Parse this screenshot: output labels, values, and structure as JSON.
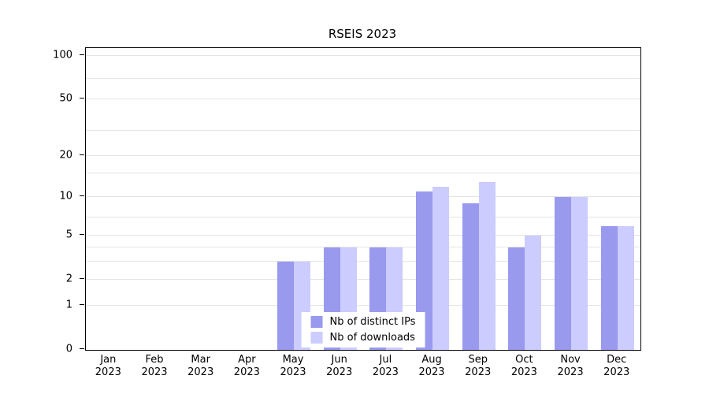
{
  "chart_data": {
    "type": "bar",
    "title": "RSEIS 2023",
    "categories": [
      "Jan 2023",
      "Feb 2023",
      "Mar 2023",
      "Apr 2023",
      "May 2023",
      "Jun 2023",
      "Jul 2023",
      "Aug 2023",
      "Sep 2023",
      "Oct 2023",
      "Nov 2023",
      "Dec 2023"
    ],
    "series": [
      {
        "name": "Nb of distinct IPs",
        "color": "#9999ee",
        "values": [
          0,
          0,
          0,
          0,
          3,
          4,
          4,
          11,
          9,
          4,
          10,
          6
        ]
      },
      {
        "name": "Nb of downloads",
        "color": "#ccccff",
        "values": [
          0,
          0,
          0,
          0,
          3,
          4,
          4,
          12,
          13,
          5,
          10,
          6
        ]
      }
    ],
    "y_ticks": [
      0,
      1,
      2,
      5,
      10,
      20,
      50,
      100
    ],
    "grid_values": [
      1,
      2,
      3,
      4,
      5,
      7,
      10,
      15,
      20,
      30,
      50,
      70,
      100
    ],
    "scale": "log1p",
    "ylim": [
      0,
      115
    ],
    "grid": "horizontal",
    "legend_position": "bottom-center",
    "colors": {
      "grid": "#e4e4e4",
      "axis": "#000000",
      "text": "#000000",
      "background": "#ffffff"
    }
  }
}
